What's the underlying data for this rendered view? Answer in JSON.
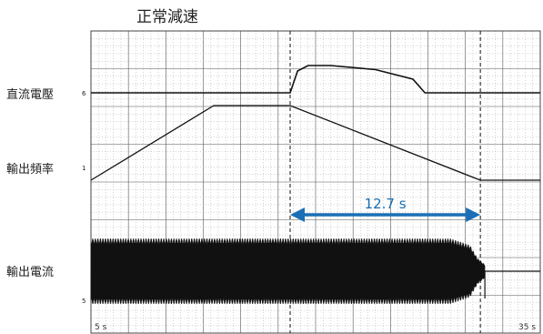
{
  "chart_data": {
    "type": "line",
    "title": "正常減速",
    "x_axis": {
      "unit": "s",
      "start_label": "5 s",
      "end_label": "35 s",
      "range": [
        5,
        35
      ]
    },
    "grid": true,
    "channels": [
      {
        "name": "直流電壓",
        "tag": "6",
        "shape": "flat baseline, rises sharply at start of deceleration, plateaus then decays back to baseline",
        "points": [
          [
            5.0,
            0
          ],
          [
            18.3,
            0
          ],
          [
            18.8,
            0.8
          ],
          [
            19.5,
            1.0
          ],
          [
            21.0,
            1.0
          ],
          [
            24.0,
            0.85
          ],
          [
            26.5,
            0.5
          ],
          [
            27.3,
            0
          ],
          [
            35.0,
            0
          ]
        ]
      },
      {
        "name": "輸出頻率",
        "tag": "1",
        "shape": "linear acceleration ramp, constant hold, linear deceleration ramp to zero",
        "points": [
          [
            5.0,
            0
          ],
          [
            13.2,
            1.0
          ],
          [
            18.3,
            1.0
          ],
          [
            31.0,
            0
          ],
          [
            35.0,
            0
          ]
        ]
      },
      {
        "name": "輸出電流",
        "tag": "5",
        "shape": "dense high-frequency oscillation with constant envelope until about 29 s, envelope collapses near 31 s, then flat constant level",
        "envelope": [
          [
            5.0,
            1.0
          ],
          [
            29.0,
            1.0
          ],
          [
            30.3,
            0.8
          ],
          [
            30.8,
            0.4
          ],
          [
            31.3,
            0.2
          ]
        ],
        "tail": [
          [
            31.3,
            0.55
          ],
          [
            35.0,
            0.55
          ]
        ]
      }
    ],
    "markers": [
      {
        "name": "deceleration start",
        "x": 18.3
      },
      {
        "name": "deceleration end",
        "x": 31.0
      }
    ],
    "annotation": {
      "text": "12.7 s",
      "from": 18.3,
      "to": 31.0,
      "color": "#1a6fb5"
    }
  }
}
